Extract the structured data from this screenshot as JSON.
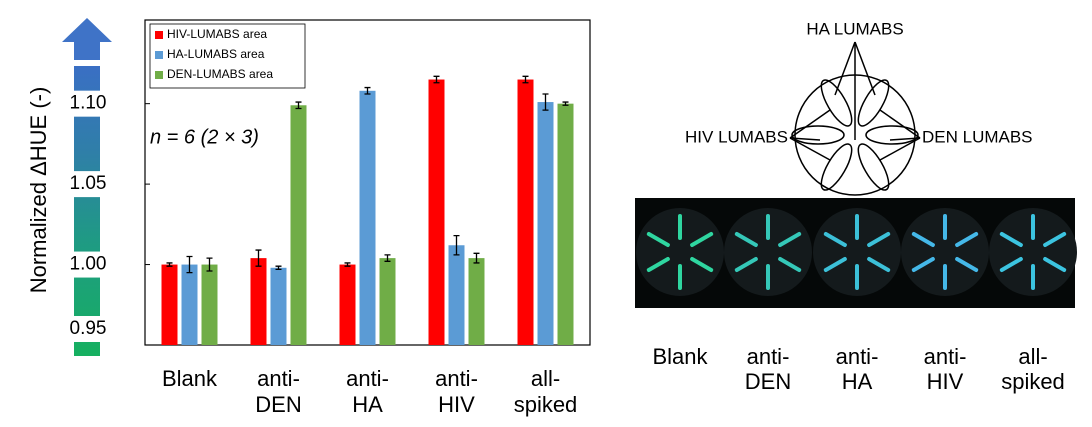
{
  "chart_data": {
    "type": "bar",
    "y_label": "Normalized ΔHUE (-)",
    "annotation": "n = 6 (2 × 3)",
    "categories": [
      [
        "Blank"
      ],
      [
        "anti-",
        "DEN"
      ],
      [
        "anti-",
        "HA"
      ],
      [
        "anti-",
        "HIV"
      ],
      [
        "all-",
        "spiked"
      ]
    ],
    "series": [
      {
        "name": "HIV-LUMABS area",
        "color": "#ff0000",
        "values": [
          1.0,
          1.004,
          1.0,
          1.115,
          1.115
        ],
        "errors": [
          0.001,
          0.005,
          0.001,
          0.002,
          0.002
        ]
      },
      {
        "name": "HA-LUMABS area",
        "color": "#5b9bd5",
        "values": [
          1.0,
          0.998,
          1.108,
          1.012,
          1.101
        ],
        "errors": [
          0.005,
          0.001,
          0.002,
          0.006,
          0.005
        ]
      },
      {
        "name": "DEN-LUMABS area",
        "color": "#70ad47",
        "values": [
          1.0,
          1.099,
          1.004,
          1.004,
          1.1
        ],
        "errors": [
          0.004,
          0.002,
          0.002,
          0.003,
          0.001
        ]
      }
    ],
    "ylim": [
      0.95,
      1.152
    ],
    "yticks": [
      0.95,
      {
        "value": 1,
        "label": "1.00"
      },
      1.05,
      {
        "value": 1.1,
        "label": "1.10"
      }
    ]
  },
  "diagram": {
    "labels": [
      "HA LUMABS",
      "HIV LUMABS",
      "DEN LUMABS"
    ]
  },
  "photo_labels": [
    [
      "Blank"
    ],
    [
      "anti-",
      "DEN"
    ],
    [
      "anti-",
      "HA"
    ],
    [
      "anti-",
      "HIV"
    ],
    [
      "all-",
      "spiked"
    ]
  ]
}
